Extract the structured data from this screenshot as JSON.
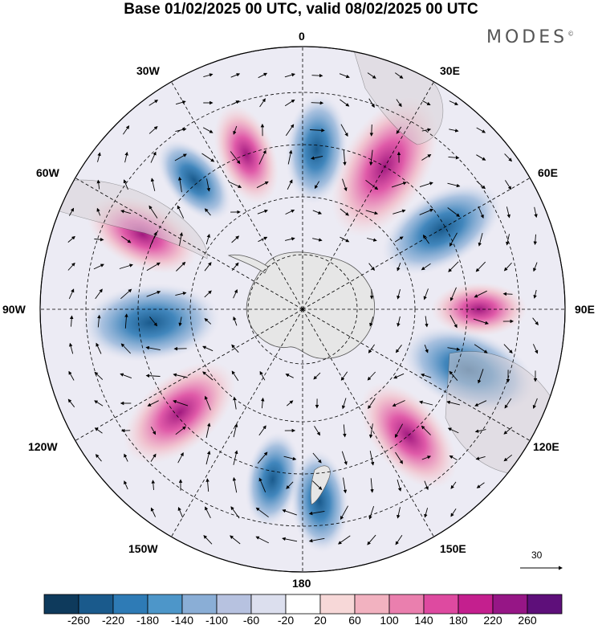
{
  "header": {
    "title": "Base 01/02/2025 00 UTC, valid 08/02/2025 00 UTC",
    "brand": "MODES",
    "brand_mark": "©"
  },
  "map": {
    "projection": "south-polar-stereographic",
    "longitude_labels": {
      "lon_0": "0",
      "lon_30e": "30E",
      "lon_60e": "60E",
      "lon_90e": "90E",
      "lon_120e": "120E",
      "lon_150e": "150E",
      "lon_180": "180",
      "lon_150w": "150W",
      "lon_120w": "120W",
      "lon_90w": "90W",
      "lon_60w": "60W",
      "lon_30w": "30W"
    },
    "wind_reference": {
      "value": "30"
    },
    "anomaly_centers": [
      {
        "lon": 30,
        "sign": "positive",
        "level": 260
      },
      {
        "lon": 5,
        "sign": "negative",
        "level": -140
      },
      {
        "lon": -20,
        "sign": "positive",
        "level": 120
      },
      {
        "lon": -40,
        "sign": "negative",
        "level": -100
      },
      {
        "lon": -65,
        "sign": "positive",
        "level": 160
      },
      {
        "lon": -95,
        "sign": "negative",
        "level": -220
      },
      {
        "lon": -130,
        "sign": "positive",
        "level": 200
      },
      {
        "lon": -170,
        "sign": "negative",
        "level": -100
      },
      {
        "lon": 140,
        "sign": "positive",
        "level": 180
      },
      {
        "lon": 110,
        "sign": "negative",
        "level": -220
      },
      {
        "lon": 90,
        "sign": "positive",
        "level": 100
      },
      {
        "lon": 60,
        "sign": "negative",
        "level": -200
      },
      {
        "lon": 175,
        "sign": "negative",
        "level": -120
      }
    ]
  },
  "colorbar": {
    "colors": [
      "#0e3a5c",
      "#1a5a8c",
      "#2e7bb6",
      "#4d96c9",
      "#8aaed6",
      "#b7c2e0",
      "#dcdfee",
      "#ffffff",
      "#f7d8d8",
      "#f2b2c0",
      "#ea7fae",
      "#de4aa0",
      "#c41f8e",
      "#961686",
      "#5e0f7a"
    ],
    "tick_labels": [
      "-260",
      "-220",
      "-180",
      "-140",
      "-100",
      "-60",
      "-20",
      "20",
      "60",
      "100",
      "140",
      "180",
      "220",
      "260"
    ]
  }
}
